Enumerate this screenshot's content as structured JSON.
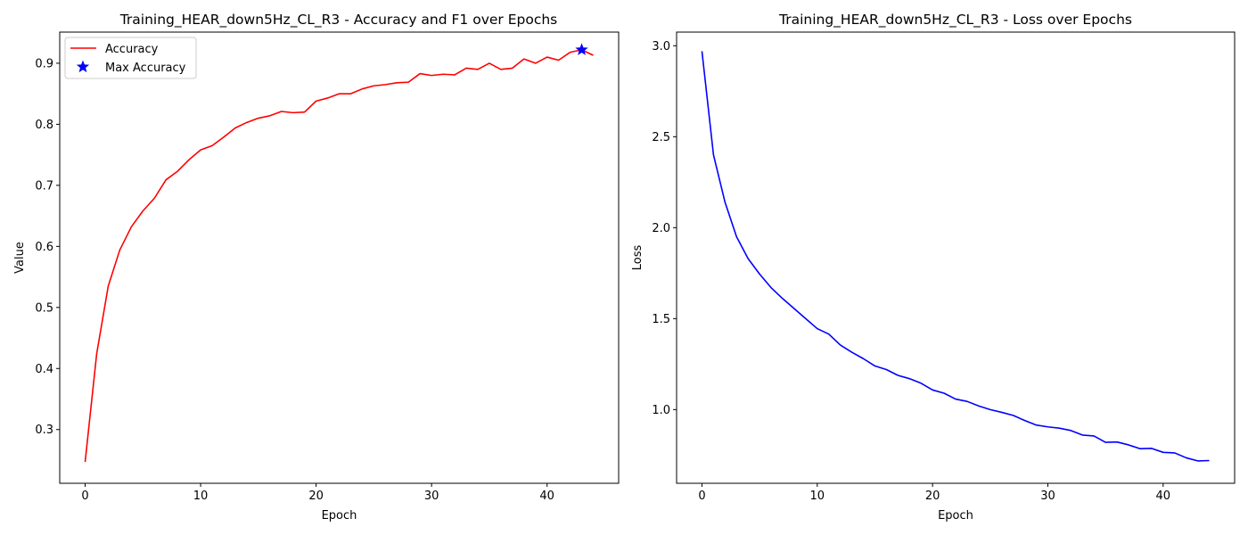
{
  "chart_data": [
    {
      "type": "line",
      "title": "Training_HEAR_down5Hz_CL_R3 - Accuracy and F1 over Epochs",
      "xlabel": "Epoch",
      "ylabel": "Value",
      "xlim": [
        -2.2,
        46.2
      ],
      "ylim": [
        0.212,
        0.951
      ],
      "xticks": [
        0,
        10,
        20,
        30,
        40
      ],
      "yticks": [
        0.3,
        0.4,
        0.5,
        0.6,
        0.7,
        0.8,
        0.9
      ],
      "grid": false,
      "legend_position": "upper left",
      "series": [
        {
          "name": "Accuracy",
          "color": "#ff0000",
          "x": [
            0,
            1,
            2,
            3,
            4,
            5,
            6,
            7,
            8,
            9,
            10,
            11,
            12,
            13,
            14,
            15,
            16,
            17,
            18,
            19,
            20,
            21,
            22,
            23,
            24,
            25,
            26,
            27,
            28,
            29,
            30,
            31,
            32,
            33,
            34,
            35,
            36,
            37,
            38,
            39,
            40,
            41,
            42,
            43,
            44
          ],
          "values": [
            0.247,
            0.424,
            0.535,
            0.594,
            0.632,
            0.658,
            0.679,
            0.709,
            0.723,
            0.742,
            0.758,
            0.765,
            0.779,
            0.794,
            0.803,
            0.81,
            0.814,
            0.821,
            0.819,
            0.82,
            0.838,
            0.843,
            0.85,
            0.85,
            0.858,
            0.863,
            0.865,
            0.868,
            0.869,
            0.883,
            0.88,
            0.882,
            0.881,
            0.892,
            0.89,
            0.9,
            0.89,
            0.892,
            0.907,
            0.9,
            0.91,
            0.905,
            0.918,
            0.922,
            0.913
          ]
        },
        {
          "name": "Max Accuracy",
          "type": "marker",
          "marker": "star",
          "color": "#0000ff",
          "x": [
            43
          ],
          "values": [
            0.922
          ]
        }
      ]
    },
    {
      "type": "line",
      "title": "Training_HEAR_down5Hz_CL_R3 - Loss over Epochs",
      "xlabel": "Epoch",
      "ylabel": "Loss",
      "xlim": [
        -2.2,
        46.2
      ],
      "ylim": [
        0.595,
        3.075
      ],
      "xticks": [
        0,
        10,
        20,
        30,
        40
      ],
      "yticks": [
        1.0,
        1.5,
        2.0,
        2.5,
        3.0
      ],
      "ytick_labels": [
        "1.0",
        "1.5",
        "2.0",
        "2.5",
        "3.0"
      ],
      "grid": false,
      "series": [
        {
          "color": "#0000ff",
          "x": [
            0,
            1,
            2,
            3,
            4,
            5,
            6,
            7,
            8,
            9,
            10,
            11,
            12,
            13,
            14,
            15,
            16,
            17,
            18,
            19,
            20,
            21,
            22,
            23,
            24,
            25,
            26,
            27,
            28,
            29,
            30,
            31,
            32,
            33,
            34,
            35,
            36,
            37,
            38,
            39,
            40,
            41,
            42,
            43,
            44
          ],
          "values": [
            2.97,
            2.4,
            2.14,
            1.95,
            1.83,
            1.745,
            1.67,
            1.61,
            1.555,
            1.5,
            1.445,
            1.415,
            1.355,
            1.315,
            1.28,
            1.24,
            1.22,
            1.188,
            1.17,
            1.145,
            1.108,
            1.09,
            1.058,
            1.045,
            1.02,
            1.0,
            0.985,
            0.968,
            0.94,
            0.915,
            0.905,
            0.898,
            0.885,
            0.86,
            0.855,
            0.82,
            0.822,
            0.806,
            0.785,
            0.787,
            0.765,
            0.762,
            0.735,
            0.718,
            0.72
          ]
        }
      ]
    }
  ]
}
